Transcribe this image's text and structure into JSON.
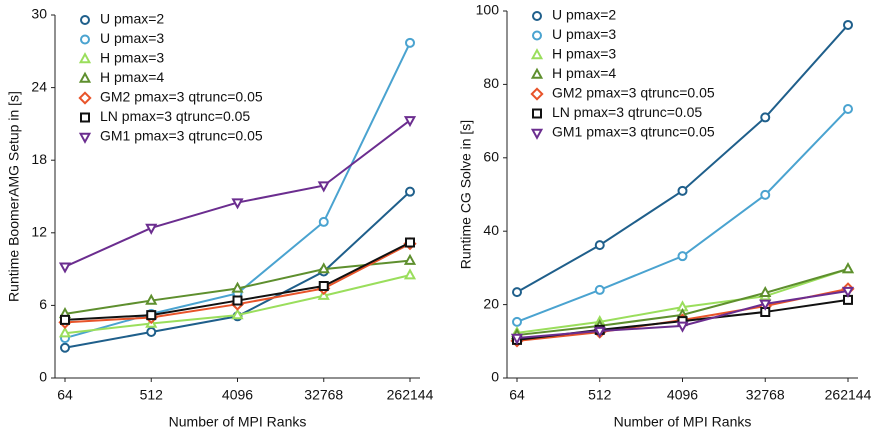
{
  "chart_data": [
    {
      "type": "line",
      "x_label": "Number of MPI Ranks",
      "y_label": "Runtime BoomerAMG Setup in [s]",
      "categories": [
        "64",
        "512",
        "4096",
        "32768",
        "262144"
      ],
      "ylim": [
        0,
        30
      ],
      "yticks": [
        0,
        6,
        12,
        18,
        24,
        30
      ],
      "legend": "upper left",
      "series": [
        {
          "name": "U pmax=2",
          "color": "#1f5f8b",
          "marker": "circle",
          "values": [
            2.5,
            3.8,
            5.1,
            8.8,
            15.4
          ]
        },
        {
          "name": "U pmax=3",
          "color": "#4aa3d0",
          "marker": "circle",
          "values": [
            3.3,
            5.3,
            7.0,
            12.9,
            27.7
          ]
        },
        {
          "name": "H pmax=3",
          "color": "#9ade5c",
          "marker": "triangle-up",
          "values": [
            3.7,
            4.5,
            5.2,
            6.8,
            8.5
          ]
        },
        {
          "name": "H pmax=4",
          "color": "#5e8f2e",
          "marker": "triangle-up",
          "values": [
            5.3,
            6.4,
            7.4,
            9.0,
            9.7
          ]
        },
        {
          "name": "GM2 pmax=3 qtrunc=0.05",
          "color": "#e8542a",
          "marker": "diamond",
          "values": [
            4.6,
            5.0,
            6.1,
            7.4,
            11.1
          ]
        },
        {
          "name": "LN pmax=3 qtrunc=0.05",
          "color": "#111111",
          "marker": "square",
          "values": [
            4.8,
            5.2,
            6.4,
            7.6,
            11.2
          ]
        },
        {
          "name": "GM1 pmax=3 qtrunc=0.05",
          "color": "#6b2d8f",
          "marker": "triangle-down",
          "values": [
            9.2,
            12.4,
            14.5,
            15.9,
            21.3
          ]
        }
      ]
    },
    {
      "type": "line",
      "x_label": "Number of MPI Ranks",
      "y_label": "Runtime CG Solve in [s]",
      "categories": [
        "64",
        "512",
        "4096",
        "32768",
        "262144"
      ],
      "ylim": [
        0,
        100
      ],
      "yticks": [
        0,
        20,
        40,
        60,
        80,
        100
      ],
      "legend": "upper left",
      "series": [
        {
          "name": "U pmax=2",
          "color": "#1f5f8b",
          "marker": "circle",
          "values": [
            23.4,
            36.2,
            51.0,
            71.0,
            96.2
          ]
        },
        {
          "name": "U pmax=3",
          "color": "#4aa3d0",
          "marker": "circle",
          "values": [
            15.3,
            24.0,
            33.2,
            49.9,
            73.3
          ]
        },
        {
          "name": "H pmax=3",
          "color": "#9ade5c",
          "marker": "triangle-up",
          "values": [
            12.3,
            15.3,
            19.3,
            22.3,
            29.7
          ]
        },
        {
          "name": "H pmax=4",
          "color": "#5e8f2e",
          "marker": "triangle-up",
          "values": [
            11.7,
            14.2,
            17.2,
            23.2,
            29.7
          ]
        },
        {
          "name": "GM2 pmax=3 qtrunc=0.05",
          "color": "#e8542a",
          "marker": "diamond",
          "values": [
            10.1,
            12.5,
            15.8,
            19.6,
            24.3
          ]
        },
        {
          "name": "LN pmax=3 qtrunc=0.05",
          "color": "#111111",
          "marker": "square",
          "values": [
            10.4,
            13.1,
            15.5,
            18.0,
            21.3
          ]
        },
        {
          "name": "GM1 pmax=3 qtrunc=0.05",
          "color": "#6b2d8f",
          "marker": "triangle-down",
          "values": [
            10.9,
            12.8,
            14.2,
            20.2,
            23.7
          ]
        }
      ]
    }
  ]
}
